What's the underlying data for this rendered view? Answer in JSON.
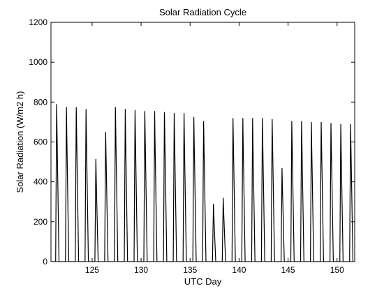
{
  "chart_data": {
    "type": "line",
    "title": "Solar Radiation Cycle",
    "xlabel": "UTC Day",
    "ylabel": "Solar Radiation (W/m2 h)",
    "xlim": [
      120.8,
      151.8
    ],
    "ylim": [
      0,
      1200
    ],
    "xticks": [
      125,
      130,
      135,
      140,
      145,
      150
    ],
    "yticks": [
      0,
      200,
      400,
      600,
      800,
      1000,
      1200
    ],
    "grid": false,
    "colors": {
      "line": "#000000",
      "axis": "#000000",
      "background": "#ffffff"
    },
    "series": [
      {
        "daily_peaks": [
          {
            "day": 121,
            "peak": 790
          },
          {
            "day": 122,
            "peak": 790
          },
          {
            "day": 123,
            "peak": 775
          },
          {
            "day": 124,
            "peak": 775
          },
          {
            "day": 125,
            "peak": 765
          },
          {
            "day": 126,
            "peak": 515
          },
          {
            "day": 127,
            "peak": 650
          },
          {
            "day": 128,
            "peak": 775
          },
          {
            "day": 129,
            "peak": 765
          },
          {
            "day": 130,
            "peak": 760
          },
          {
            "day": 131,
            "peak": 755
          },
          {
            "day": 132,
            "peak": 755
          },
          {
            "day": 133,
            "peak": 750
          },
          {
            "day": 134,
            "peak": 745
          },
          {
            "day": 135,
            "peak": 745
          },
          {
            "day": 136,
            "peak": 725
          },
          {
            "day": 137,
            "peak": 705
          },
          {
            "day": 138,
            "peak": 290
          },
          {
            "day": 139,
            "peak": 320
          },
          {
            "day": 140,
            "peak": 720
          },
          {
            "day": 141,
            "peak": 720
          },
          {
            "day": 142,
            "peak": 720
          },
          {
            "day": 143,
            "peak": 720
          },
          {
            "day": 144,
            "peak": 715
          },
          {
            "day": 145,
            "peak": 470
          },
          {
            "day": 146,
            "peak": 705
          },
          {
            "day": 147,
            "peak": 705
          },
          {
            "day": 148,
            "peak": 700
          },
          {
            "day": 149,
            "peak": 700
          },
          {
            "day": 150,
            "peak": 695
          },
          {
            "day": 151,
            "peak": 690
          },
          {
            "day": 152,
            "peak": 690
          }
        ]
      }
    ]
  }
}
